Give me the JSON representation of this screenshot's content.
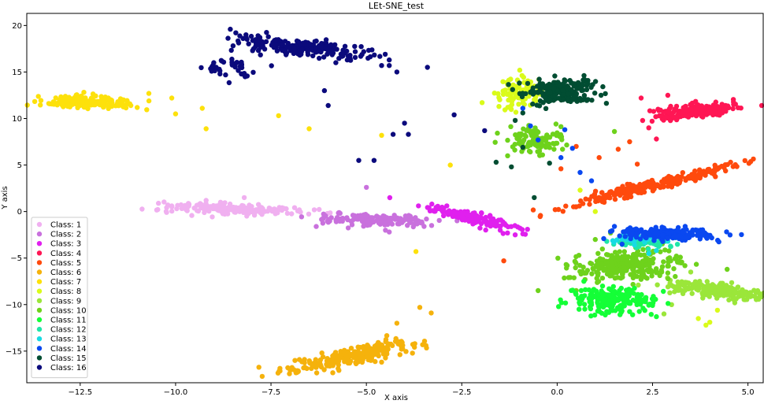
{
  "chart_data": {
    "type": "scatter",
    "title": "LEt-SNE_test",
    "xlabel": "X axis",
    "ylabel": "Y axis",
    "xlim": [
      -13.9,
      5.4
    ],
    "ylim": [
      -18.4,
      21.3
    ],
    "xticks": [
      -12.5,
      -10.0,
      -7.5,
      -5.0,
      -2.5,
      0.0,
      2.5,
      5.0
    ],
    "yticks": [
      -15,
      -10,
      -5,
      0,
      5,
      10,
      15,
      20
    ],
    "xtick_labels": [
      "−12.5",
      "−10.0",
      "−7.5",
      "−5.0",
      "−2.5",
      "0.0",
      "2.5",
      "5.0"
    ],
    "ytick_labels": [
      "−15",
      "−10",
      "−5",
      "0",
      "5",
      "10",
      "15",
      "20"
    ],
    "grid": false,
    "legend_position": "lower-left",
    "series": [
      {
        "name": "Class: 1",
        "color": "#f0b0f0",
        "clusters": [
          {
            "cx": -8.5,
            "cy": 0.3,
            "sx": 0.9,
            "sy": 0.3,
            "n": 180,
            "slope": -0.1
          }
        ],
        "x": [
          -10.1,
          -9.2,
          -8.2,
          -7.1
        ],
        "y": [
          0.6,
          1.2,
          1.5,
          0.3
        ]
      },
      {
        "name": "Class: 2",
        "color": "#c971dd",
        "clusters": [
          {
            "cx": -4.8,
            "cy": -0.9,
            "sx": 0.8,
            "sy": 0.3,
            "n": 150,
            "slope": -0.1
          }
        ],
        "x": [
          -5.0,
          -4.5,
          -4.4
        ],
        "y": [
          2.6,
          -2.0,
          -2.2
        ]
      },
      {
        "name": "Class: 3",
        "color": "#e020ee",
        "clusters": [
          {
            "cx": -2.3,
            "cy": -0.6,
            "sx": 0.6,
            "sy": 0.3,
            "n": 150,
            "slope": -0.9
          }
        ],
        "x": [
          -1.3,
          -1.1,
          -0.9
        ],
        "y": [
          -2.3,
          -2.5,
          -2.4
        ]
      },
      {
        "name": "Class: 4",
        "color": "#ff1654",
        "clusters": [
          {
            "cx": 3.6,
            "cy": 10.8,
            "sx": 0.55,
            "sy": 0.35,
            "n": 220,
            "slope": 0.35
          }
        ],
        "x": [
          2.4,
          2.6,
          2.9,
          2.2
        ],
        "y": [
          9.0,
          7.8,
          12.5,
          12.2
        ]
      },
      {
        "name": "Class: 5",
        "color": "#ff4a0d",
        "clusters": [
          {
            "cx": 2.5,
            "cy": 2.8,
            "sx": 1.1,
            "sy": 0.35,
            "n": 240,
            "slope": 1.0
          }
        ],
        "x": [
          1.1,
          1.6,
          1.9,
          2.1,
          0.5,
          0.1,
          -1.4
        ],
        "y": [
          5.8,
          6.7,
          7.5,
          5.1,
          7.0,
          4.6,
          -5.3
        ]
      },
      {
        "name": "Class: 6",
        "color": "#f5b20c",
        "clusters": [
          {
            "cx": -5.3,
            "cy": -15.5,
            "sx": 0.9,
            "sy": 0.45,
            "n": 240,
            "slope": 0.9
          }
        ],
        "x": [
          -3.6,
          -3.3,
          -4.2
        ],
        "y": [
          -10.3,
          -10.9,
          -12.0
        ]
      },
      {
        "name": "Class: 7",
        "color": "#fde10b",
        "clusters": [
          {
            "cx": -12.3,
            "cy": 11.8,
            "sx": 0.6,
            "sy": 0.3,
            "n": 200,
            "slope": -0.15
          }
        ],
        "x": [
          -10.7,
          -10.1,
          -10.0,
          -9.2,
          -9.3,
          -7.3,
          -6.5,
          -4.6,
          -3.7,
          -2.8
        ],
        "y": [
          12.7,
          12.2,
          10.5,
          8.9,
          11.1,
          10.3,
          8.9,
          8.2,
          -4.3,
          5.0
        ]
      },
      {
        "name": "Class: 8",
        "color": "#dafb1a",
        "clusters": [
          {
            "cx": -1.0,
            "cy": 12.8,
            "sx": 0.35,
            "sy": 0.8,
            "n": 100,
            "slope": 0
          }
        ],
        "x": [
          4.0,
          3.7,
          3.9,
          4.2,
          1.0,
          0.6
        ],
        "y": [
          -11.9,
          -11.5,
          -12.2,
          -10.6,
          0.0,
          2.3
        ]
      },
      {
        "name": "Class: 9",
        "color": "#9be63a",
        "clusters": [
          {
            "cx": 4.2,
            "cy": -8.5,
            "sx": 0.7,
            "sy": 0.35,
            "n": 230,
            "slope": -0.45
          }
        ],
        "x": [
          3.2,
          3.5,
          3.0,
          4.5,
          2.8
        ],
        "y": [
          -5.5,
          -6.5,
          -10.0,
          -9.5,
          -11.0
        ]
      },
      {
        "name": "Class: 10",
        "color": "#6ed21c",
        "clusters": [
          {
            "cx": 1.8,
            "cy": -5.8,
            "sx": 0.75,
            "sy": 0.7,
            "n": 260,
            "slope": 0
          },
          {
            "cx": -0.6,
            "cy": 7.7,
            "sx": 0.35,
            "sy": 0.7,
            "n": 120,
            "slope": 0
          }
        ],
        "x": [
          1.0,
          1.4,
          0.5,
          0.3,
          2.9,
          -0.5,
          1.5
        ],
        "y": [
          -3.0,
          -2.3,
          -8.5,
          -7.1,
          -6.6,
          -8.5,
          8.6
        ]
      },
      {
        "name": "Class: 11",
        "color": "#14ff37",
        "clusters": [
          {
            "cx": 1.5,
            "cy": -9.5,
            "sx": 0.6,
            "sy": 0.65,
            "n": 220,
            "slope": 0
          }
        ],
        "x": [
          0.7,
          2.5,
          2.6
        ],
        "y": [
          -7.5,
          -10.1,
          -11.3
        ]
      },
      {
        "name": "Class: 12",
        "color": "#20e6a8",
        "clusters": [
          {
            "cx": 2.3,
            "cy": -3.3,
            "sx": 0.4,
            "sy": 0.3,
            "n": 60,
            "slope": 0
          }
        ],
        "x": [],
        "y": []
      },
      {
        "name": "Class: 13",
        "color": "#17dbe3",
        "clusters": [
          {
            "cx": 2.0,
            "cy": -2.9,
            "sx": 0.3,
            "sy": 0.3,
            "n": 40,
            "slope": 0
          }
        ],
        "x": [
          2.4,
          2.6
        ],
        "y": [
          -4.5,
          -4.2
        ]
      },
      {
        "name": "Class: 14",
        "color": "#0a48f0",
        "clusters": [
          {
            "cx": 2.9,
            "cy": -2.4,
            "sx": 0.6,
            "sy": 0.3,
            "n": 220,
            "slope": -0.1
          }
        ],
        "x": [
          -0.9,
          -0.7,
          -0.5,
          0.4,
          0.6,
          0.9,
          0.1,
          1.7,
          1.5,
          0.2
        ],
        "y": [
          11.1,
          9.2,
          7.7,
          6.8,
          4.2,
          3.3,
          5.8,
          -3.5,
          -1.6,
          8.8
        ]
      },
      {
        "name": "Class: 15",
        "color": "#014d32",
        "clusters": [
          {
            "cx": 0.1,
            "cy": 12.9,
            "sx": 0.45,
            "sy": 0.65,
            "n": 220,
            "slope": 0
          }
        ],
        "x": [
          -0.9,
          -1.2,
          -1.6,
          -0.6,
          -0.2,
          -1.1,
          -0.9
        ],
        "y": [
          6.9,
          4.8,
          5.3,
          1.5,
          5.2,
          9.8,
          10.6
        ]
      },
      {
        "name": "Class: 16",
        "color": "#0b0a7c",
        "clusters": [
          {
            "cx": -6.8,
            "cy": 17.7,
            "sx": 0.85,
            "sy": 0.45,
            "n": 200,
            "slope": -0.4
          },
          {
            "cx": -8.5,
            "cy": 15.5,
            "sx": 0.35,
            "sy": 0.5,
            "n": 40,
            "slope": 0
          }
        ],
        "x": [
          -9.0,
          -5.5,
          -5.8,
          -4.4,
          -4.6,
          -4.4,
          -4.2,
          -3.4,
          -6.1,
          -6.0,
          -5.2,
          -4.8,
          -4.3,
          -4.0,
          -3.9,
          -2.7,
          -1.9
        ],
        "y": [
          16.0,
          16.3,
          16.0,
          16.3,
          15.7,
          15.7,
          15.0,
          15.5,
          13.0,
          11.4,
          5.5,
          5.5,
          8.3,
          9.5,
          8.3,
          10.4,
          8.7
        ]
      }
    ]
  }
}
